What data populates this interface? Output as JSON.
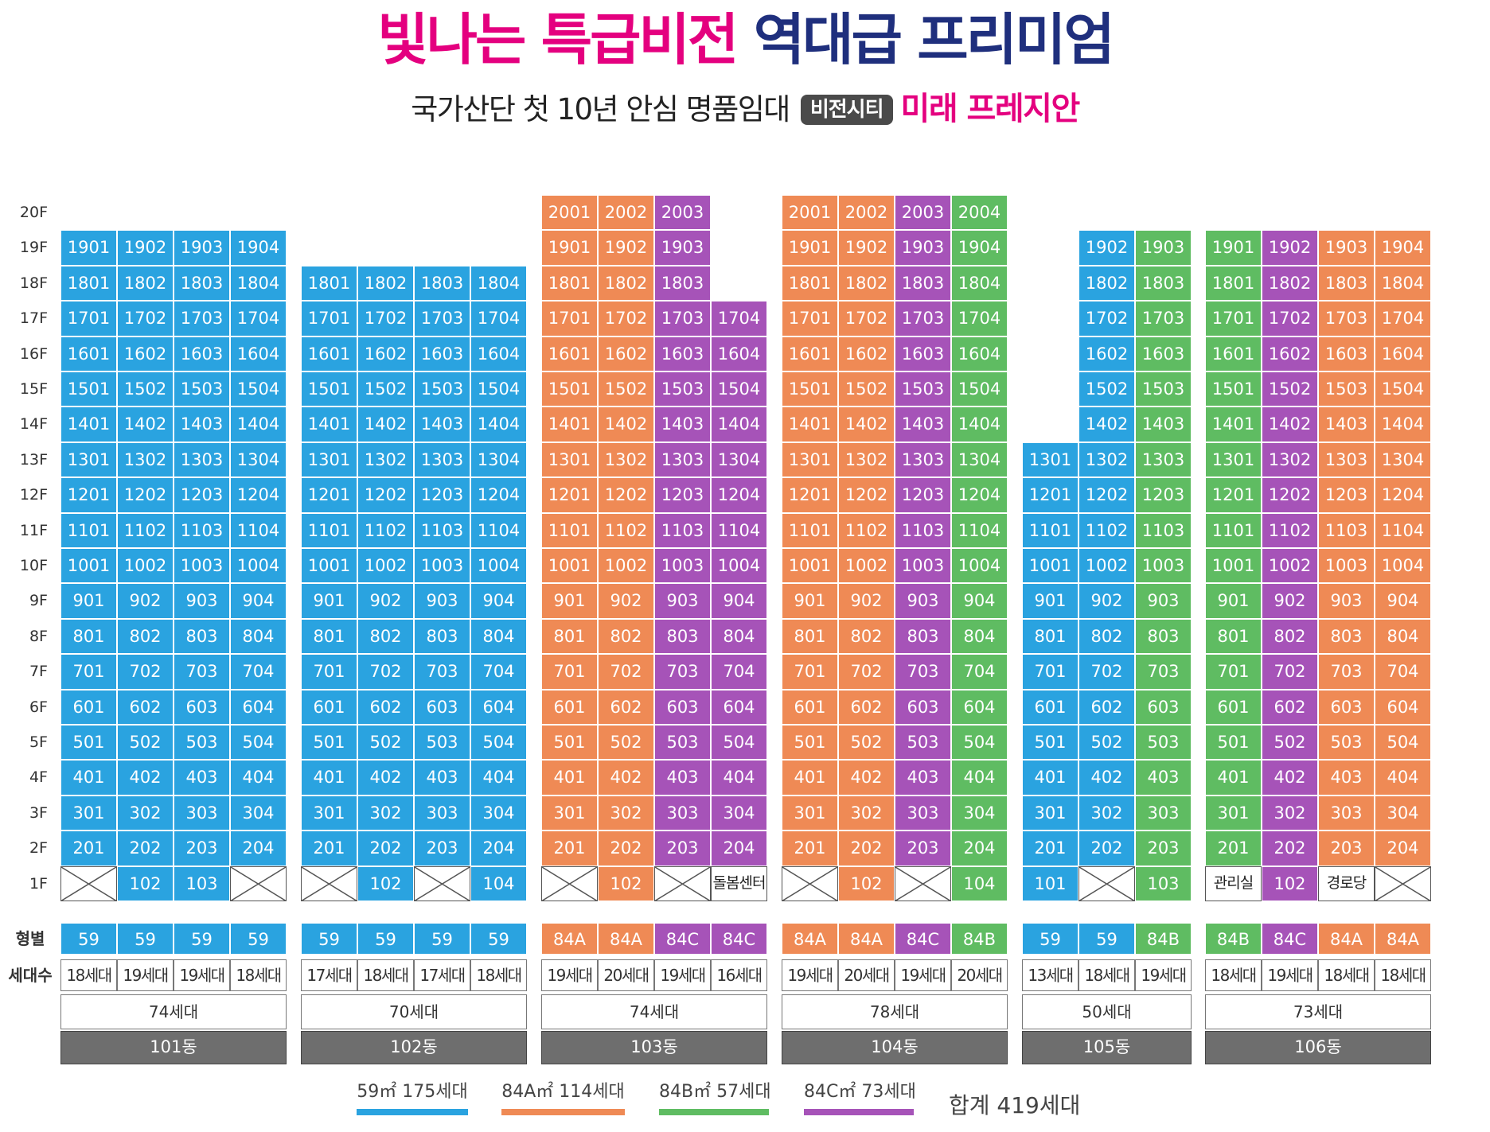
{
  "colors": {
    "59": "#2aa3e0",
    "84A": "#ef8a55",
    "84B": "#5fbc62",
    "84C": "#a653b8"
  },
  "header": {
    "title_pink": "빛나는 특급비전",
    "title_navy": "역대급 프리미엄",
    "subtitle_text": "국가산단 첫 10년 안심 명품임대",
    "subtitle_badge": "비전시티",
    "subtitle_pink": "미래 프레지안"
  },
  "floors": [
    "20F",
    "19F",
    "18F",
    "17F",
    "16F",
    "15F",
    "14F",
    "13F",
    "12F",
    "11F",
    "10F",
    "9F",
    "8F",
    "7F",
    "6F",
    "5F",
    "4F",
    "3F",
    "2F",
    "1F"
  ],
  "row_labels": {
    "type": "형별",
    "households": "세대수"
  },
  "first_floor_labels": {
    "101동": [
      "",
      "102",
      "103",
      ""
    ],
    "102동": [
      "",
      "102",
      "",
      "104"
    ],
    "103동": [
      "",
      "102",
      "",
      "돌봄센터"
    ],
    "104동": [
      "",
      "102",
      "",
      "104"
    ],
    "105동": [
      "101",
      "",
      "103"
    ],
    "106동": [
      "관리실",
      "102",
      "경로당",
      ""
    ]
  },
  "buildings": [
    {
      "name": "101동",
      "total": "74세대",
      "types": [
        "59",
        "59",
        "59",
        "59"
      ],
      "households": [
        "18세대",
        "19세대",
        "19세대",
        "18세대"
      ],
      "top_floors": [
        19,
        19,
        19,
        19
      ],
      "bottom_floors": [
        2,
        2,
        2,
        2
      ],
      "first_floor": [
        "empty",
        "59",
        "59",
        "empty"
      ]
    },
    {
      "name": "102동",
      "total": "70세대",
      "types": [
        "59",
        "59",
        "59",
        "59"
      ],
      "households": [
        "17세대",
        "18세대",
        "17세대",
        "18세대"
      ],
      "top_floors": [
        18,
        18,
        18,
        18
      ],
      "bottom_floors": [
        2,
        2,
        2,
        2
      ],
      "first_floor": [
        "empty",
        "59",
        "empty",
        "59"
      ]
    },
    {
      "name": "103동",
      "total": "74세대",
      "types": [
        "84A",
        "84A",
        "84C",
        "84C"
      ],
      "households": [
        "19세대",
        "20세대",
        "19세대",
        "16세대"
      ],
      "top_floors": [
        20,
        20,
        20,
        17
      ],
      "bottom_floors": [
        2,
        2,
        2,
        2
      ],
      "first_floor": [
        "empty",
        "84A",
        "empty",
        "white"
      ]
    },
    {
      "name": "104동",
      "total": "78세대",
      "types": [
        "84A",
        "84A",
        "84C",
        "84B"
      ],
      "households": [
        "19세대",
        "20세대",
        "19세대",
        "20세대"
      ],
      "top_floors": [
        20,
        20,
        20,
        20
      ],
      "bottom_floors": [
        2,
        2,
        2,
        2
      ],
      "first_floor": [
        "empty",
        "84A",
        "empty",
        "84B"
      ]
    },
    {
      "name": "105동",
      "total": "50세대",
      "types": [
        "59",
        "59",
        "84B"
      ],
      "households": [
        "13세대",
        "18세대",
        "19세대"
      ],
      "top_floors": [
        13,
        19,
        19
      ],
      "bottom_floors": [
        2,
        2,
        2
      ],
      "first_floor": [
        "59",
        "empty",
        "84B"
      ]
    },
    {
      "name": "106동",
      "total": "73세대",
      "types": [
        "84B",
        "84C",
        "84A",
        "84A"
      ],
      "households": [
        "18세대",
        "19세대",
        "18세대",
        "18세대"
      ],
      "top_floors": [
        19,
        19,
        19,
        19
      ],
      "bottom_floors": [
        2,
        2,
        2,
        2
      ],
      "first_floor": [
        "white",
        "84C",
        "white",
        "empty"
      ]
    }
  ],
  "legend": [
    {
      "label": "59㎡  175세대",
      "type": "59"
    },
    {
      "label": "84A㎡  114세대",
      "type": "84A"
    },
    {
      "label": "84B㎡  57세대",
      "type": "84B"
    },
    {
      "label": "84C㎡  73세대",
      "type": "84C"
    }
  ],
  "legend_total": "합계  419세대"
}
